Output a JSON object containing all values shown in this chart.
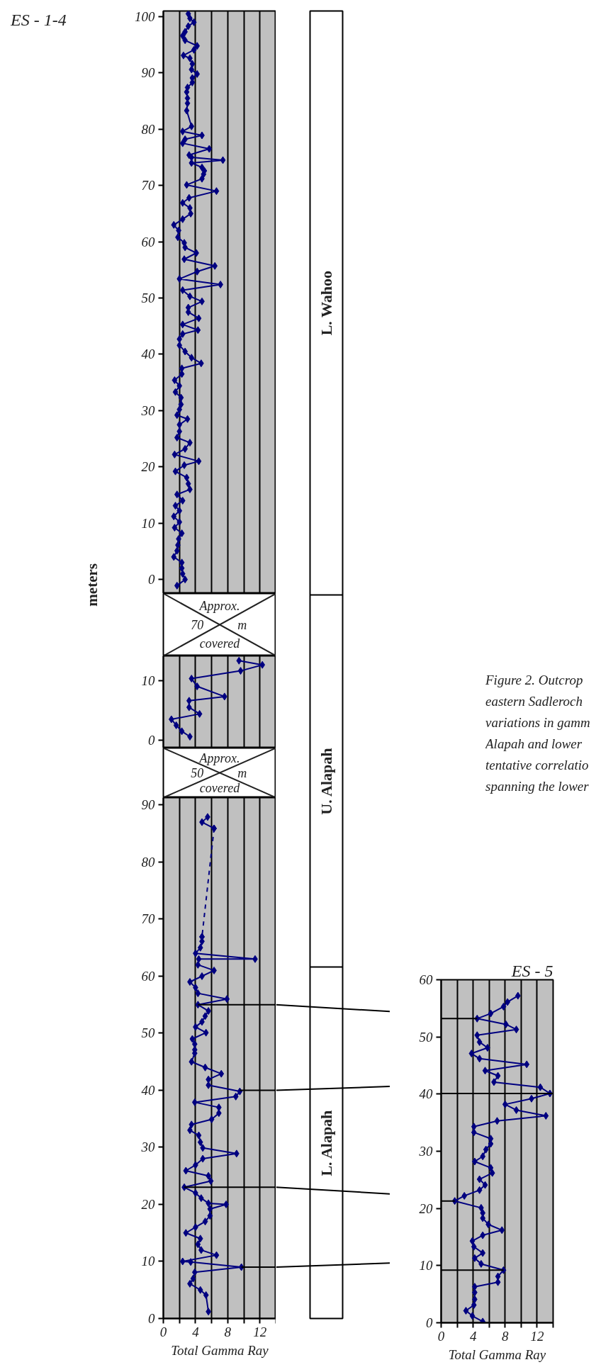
{
  "chart_data": [
    {
      "type": "line",
      "title": "ES - 1-4",
      "ylabel": "meters",
      "xlim": [
        0,
        14
      ],
      "ylim": [
        -2.5,
        101
      ],
      "xticks": [
        {
          "value": 0,
          "label": null
        },
        {
          "value": 2,
          "label": null
        },
        {
          "value": 4,
          "label": null
        },
        {
          "value": 6,
          "label": null
        },
        {
          "value": 8,
          "label": null
        },
        {
          "value": 10,
          "label": null
        },
        {
          "value": 12,
          "label": null
        },
        {
          "value": 14,
          "label": null
        }
      ],
      "yticks": [
        0,
        10,
        20,
        30,
        40,
        50,
        60,
        70,
        80,
        90,
        100
      ],
      "grid": "x",
      "tick_labels": "y",
      "marker": "diamond",
      "annotations": [
        "Approx. 70 m covered"
      ],
      "series": [
        {
          "color": "#000080",
          "x": [
            3.1,
            3.3,
            3.8,
            3.1,
            2.7,
            2.4,
            2.7,
            4.2,
            3.8,
            2.5,
            3.3,
            3.6,
            3.5,
            4.2,
            3.6,
            3.6,
            3.0,
            2.9,
            3.0,
            3.0,
            2.9,
            3.5,
            2.4,
            4.8,
            2.7,
            2.4,
            5.7,
            3.2,
            3.5,
            7.4,
            3.5,
            4.8,
            5.1,
            5.0,
            4.8,
            2.9,
            6.6,
            3.2,
            2.4,
            3.3,
            3.4,
            2.4,
            1.3,
            1.9,
            1.8,
            2.6,
            2.7,
            4.1,
            2.6,
            6.4,
            4.2,
            2.0,
            7.1,
            2.4,
            3.3,
            4.8,
            3.1,
            3.1,
            4.4,
            2.4,
            4.3,
            2.4,
            2.0,
            2.0,
            2.7,
            3.5,
            4.7,
            2.3,
            2.3,
            1.4,
            2.0,
            1.5,
            2.2,
            2.2,
            2.0,
            1.7,
            3.0,
            2.0,
            2.0,
            1.7,
            3.3,
            2.7,
            1.4,
            4.4,
            2.6,
            1.5,
            2.9,
            3.1,
            3.3,
            1.7,
            2.4,
            1.5,
            2.0,
            1.3,
            2.0,
            1.4,
            2.3,
            1.9,
            1.8,
            1.7,
            1.3,
            2.3,
            2.3,
            2.4,
            2.7,
            1.7
          ],
          "values": [
            100.5,
            99.7,
            99.0,
            98.3,
            97.3,
            96.6,
            95.8,
            94.8,
            94.1,
            93.1,
            92.6,
            91.6,
            90.6,
            89.8,
            89.1,
            88.3,
            87.4,
            86.6,
            85.5,
            84.6,
            83.3,
            80.5,
            79.6,
            78.9,
            78.2,
            77.5,
            76.5,
            75.4,
            75.0,
            74.5,
            74.0,
            73.2,
            72.6,
            72.0,
            71.2,
            70.1,
            69.0,
            67.8,
            66.9,
            66.0,
            65.0,
            64.0,
            63.0,
            62.0,
            60.8,
            59.8,
            59.0,
            58.0,
            56.9,
            55.7,
            54.7,
            53.4,
            52.4,
            51.4,
            50.3,
            49.4,
            48.3,
            47.5,
            46.4,
            45.3,
            44.3,
            43.6,
            42.7,
            41.6,
            40.5,
            39.4,
            38.4,
            37.5,
            36.5,
            35.4,
            34.4,
            33.3,
            32.3,
            31.1,
            30.2,
            29.2,
            28.5,
            27.5,
            26.3,
            25.2,
            24.3,
            23.2,
            22.2,
            21.0,
            20.3,
            19.2,
            18.1,
            17.0,
            16.0,
            15.1,
            14.0,
            13.1,
            12.2,
            11.2,
            10.2,
            9.2,
            8.2,
            7.2,
            6.1,
            5.1,
            4.0,
            3.0,
            2.0,
            1.0,
            0.0,
            -1.1
          ]
        }
      ]
    },
    {
      "type": "line",
      "xlim": [
        0,
        14
      ],
      "ylim": [
        -1.3,
        14.1
      ],
      "xticks": [
        {
          "value": 0,
          "label": null
        },
        {
          "value": 2,
          "label": null
        },
        {
          "value": 4,
          "label": null
        },
        {
          "value": 6,
          "label": null
        },
        {
          "value": 8,
          "label": null
        },
        {
          "value": 10,
          "label": null
        },
        {
          "value": 12,
          "label": null
        },
        {
          "value": 14,
          "label": null
        }
      ],
      "yticks": [
        0,
        10
      ],
      "grid": "x",
      "tick_labels": "y",
      "marker": "diamond",
      "series": [
        {
          "color": "#000080",
          "x": [
            9.4,
            12.3,
            9.6,
            3.5,
            4.2,
            7.6,
            3.2,
            3.2,
            4.5,
            1.0,
            1.6,
            2.3,
            3.3
          ],
          "values": [
            13.3,
            12.6,
            11.6,
            10.3,
            9.0,
            7.3,
            6.6,
            5.5,
            4.4,
            3.5,
            2.5,
            1.5,
            0.6
          ]
        }
      ]
    },
    {
      "type": "line",
      "xlabel": "Total Gamma Ray",
      "xlim": [
        0,
        14
      ],
      "ylim": [
        0,
        91.3
      ],
      "xticks": [
        0,
        {
          "value": 2,
          "label": null
        },
        4,
        {
          "value": 6,
          "label": null
        },
        8,
        {
          "value": 10,
          "label": null
        },
        12,
        {
          "value": 14,
          "label": null
        }
      ],
      "yticks": [
        0,
        10,
        20,
        30,
        40,
        50,
        60,
        70,
        80,
        90
      ],
      "grid": "x",
      "marker": "diamond",
      "annotations": [
        "Approx. 50 m covered"
      ],
      "series": [
        {
          "color": "#000080",
          "x": [
            5.5,
            4.8,
            6.3
          ],
          "values": [
            87.9,
            87.0,
            85.9
          ]
        },
        {
          "color": "#000080",
          "line_style": "dashed",
          "x": [
            6.3,
            4.8
          ],
          "values": [
            85.9,
            66.9
          ]
        },
        {
          "color": "#000080",
          "x": [
            4.8,
            4.8,
            4.6,
            4.0,
            11.4,
            4.4,
            4.3,
            6.3,
            4.8,
            3.3,
            4.0,
            4.3,
            7.9,
            4.3,
            5.6,
            5.2,
            4.8,
            4.0,
            5.3,
            3.6,
            3.9,
            3.9,
            3.9,
            3.5,
            5.2,
            7.2,
            5.6,
            5.6,
            9.5,
            9.0,
            3.9,
            6.9,
            6.9,
            6.0,
            3.5,
            3.3,
            4.4,
            4.6,
            4.9,
            9.1,
            4.9,
            4.0,
            2.8,
            5.6,
            5.9,
            2.6,
            4.0,
            4.7,
            5.6,
            7.8,
            5.8,
            5.8,
            5.2,
            4.0,
            2.8,
            4.6,
            4.3,
            4.7,
            6.6,
            2.4,
            3.4,
            9.7,
            3.9,
            3.7,
            3.3,
            4.6,
            5.3,
            5.6
          ],
          "values": [
            66.9,
            66.1,
            65.0,
            64.0,
            63.0,
            63.0,
            62.0,
            61.0,
            60.0,
            59.0,
            58.0,
            57.0,
            56.0,
            55.0,
            53.9,
            53.0,
            52.0,
            51.1,
            50.1,
            49.0,
            48.1,
            47.1,
            46.5,
            45.0,
            44.0,
            42.9,
            41.9,
            40.9,
            39.8,
            38.9,
            37.9,
            37.0,
            36.0,
            34.9,
            34.0,
            33.0,
            32.1,
            30.9,
            29.9,
            28.9,
            28.0,
            26.9,
            25.9,
            25.0,
            24.1,
            23.0,
            22.0,
            21.1,
            20.2,
            20.0,
            19.2,
            18.0,
            17.0,
            16.0,
            15.0,
            14.0,
            13.0,
            12.0,
            11.1,
            10.0,
            9.9,
            9.0,
            8.1,
            7.0,
            6.1,
            5.0,
            4.1,
            1.2
          ]
        },
        {
          "type": "line",
          "color": "#000000",
          "marker": "none",
          "x": [
            4.3,
            14
          ],
          "values": [
            55.0,
            55.0
          ]
        },
        {
          "type": "line",
          "color": "#000000",
          "marker": "none",
          "x": [
            9.5,
            14
          ],
          "values": [
            40.0,
            40.0
          ]
        },
        {
          "type": "line",
          "color": "#000000",
          "marker": "none",
          "x": [
            2.6,
            14
          ],
          "values": [
            23.0,
            23.0
          ]
        },
        {
          "type": "line",
          "color": "#000000",
          "marker": "none",
          "x": [
            9.7,
            14
          ],
          "values": [
            9.0,
            9.0
          ]
        }
      ]
    },
    {
      "type": "other",
      "categories": [
        "L. Wahoo",
        "U. Alapah",
        "L. Alapah"
      ],
      "annotations": [
        "Figure 2. Outcrop",
        "eastern Sadleroch",
        "variations in gamm",
        "Alapah and lower",
        "tentative correlatio",
        "spanning the lower"
      ]
    },
    {
      "type": "line",
      "title": "ES - 5",
      "xlabel": "Total Gamma Ray",
      "xlim": [
        0,
        14
      ],
      "ylim": [
        0,
        60
      ],
      "xticks": [
        0,
        {
          "value": 2,
          "label": null
        },
        4,
        {
          "value": 6,
          "label": null
        },
        8,
        {
          "value": 10,
          "label": null
        },
        12,
        {
          "value": 14,
          "label": null
        }
      ],
      "yticks": [
        0,
        10,
        20,
        30,
        40,
        50,
        60
      ],
      "grid": "x",
      "marker": "diamond",
      "series": [
        {
          "color": "#000080",
          "x": [
            9.6,
            8.3,
            7.8,
            6.2,
            4.5,
            8.1,
            9.4,
            4.5,
            4.8,
            5.8,
            3.8,
            4.8,
            10.7,
            5.5,
            7.1,
            6.6,
            12.4,
            13.6,
            11.3,
            8.0,
            9.4,
            13.1,
            7.0,
            4.1,
            4.1,
            6.2,
            6.2,
            5.6,
            5.2,
            4.2,
            6.2,
            6.4,
            4.8,
            5.5,
            4.8,
            2.9,
            1.7,
            5.0,
            5.2,
            5.2,
            5.9,
            7.6,
            5.2,
            3.9,
            4.1,
            5.2,
            4.2,
            5.0,
            7.8,
            7.1,
            7.1,
            4.2,
            4.2,
            4.2,
            4.1,
            3.1,
            3.9,
            5.2
          ],
          "values": [
            57.2,
            56.1,
            55.3,
            54.1,
            53.2,
            52.2,
            51.3,
            50.3,
            49.1,
            48.1,
            47.1,
            46.2,
            45.2,
            44.1,
            43.2,
            42.1,
            41.2,
            40.1,
            39.2,
            38.2,
            37.2,
            36.2,
            35.3,
            34.3,
            33.3,
            32.2,
            31.3,
            30.3,
            29.1,
            28.2,
            27.1,
            26.2,
            25.1,
            24.1,
            23.2,
            22.2,
            21.3,
            20.1,
            19.2,
            18.3,
            17.2,
            16.2,
            15.3,
            14.3,
            13.3,
            12.2,
            11.3,
            10.3,
            9.2,
            8.1,
            7.1,
            6.3,
            5.3,
            4.1,
            3.1,
            2.1,
            1.2,
            0.2
          ]
        },
        {
          "type": "line",
          "color": "#000000",
          "marker": "none",
          "x": [
            0,
            4.5
          ],
          "values": [
            53.2,
            53.2
          ]
        },
        {
          "type": "line",
          "color": "#000000",
          "marker": "none",
          "x": [
            0,
            14
          ],
          "values": [
            40.1,
            40.1
          ]
        },
        {
          "type": "line",
          "color": "#000000",
          "marker": "none",
          "x": [
            0,
            1.7
          ],
          "values": [
            21.3,
            21.3
          ]
        },
        {
          "type": "line",
          "color": "#000000",
          "marker": "none",
          "x": [
            0,
            7.8
          ],
          "values": [
            9.2,
            9.2
          ]
        }
      ]
    }
  ]
}
